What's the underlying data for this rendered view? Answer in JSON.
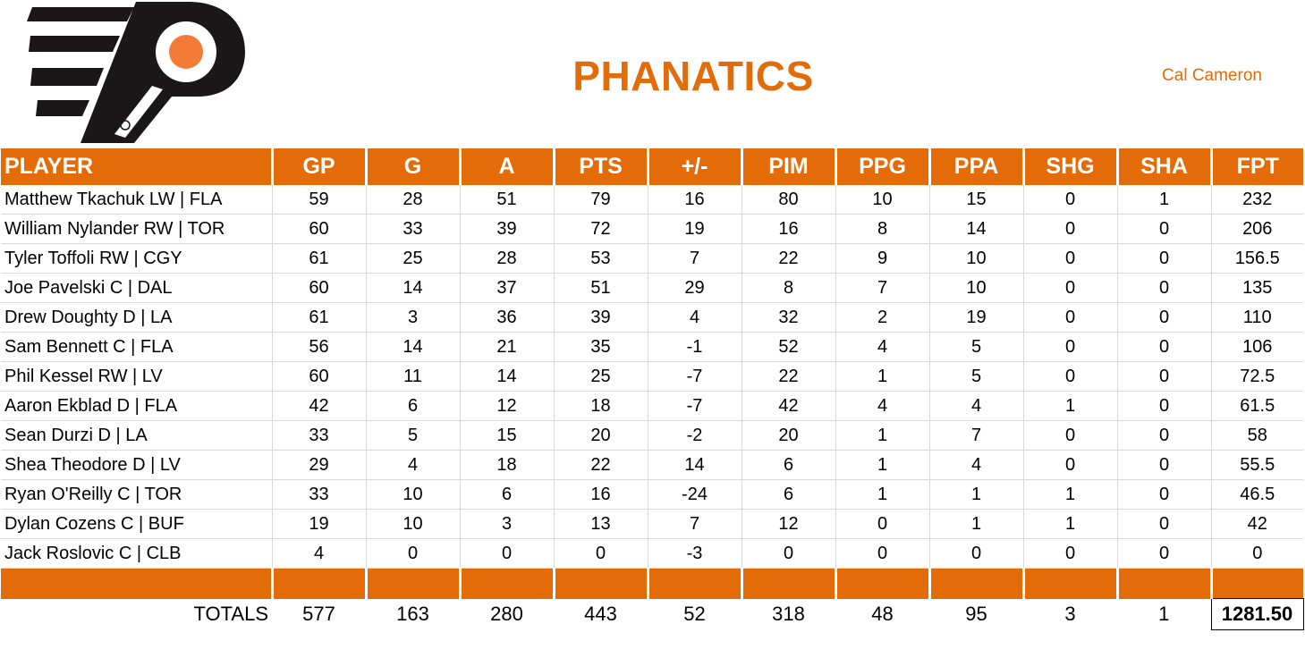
{
  "header": {
    "team_name": "PHANATICS",
    "owner": "Cal Cameron",
    "logo_icon": "flyers-logo-icon"
  },
  "colors": {
    "accent": "#e36c09",
    "title": "#e26b0a",
    "logo_black": "#1a1718",
    "logo_orange": "#f47a38"
  },
  "table": {
    "columns": [
      "PLAYER",
      "GP",
      "G",
      "A",
      "PTS",
      "+/-",
      "PIM",
      "PPG",
      "PPA",
      "SHG",
      "SHA",
      "FPT"
    ],
    "rows": [
      [
        "Matthew Tkachuk LW | FLA",
        "59",
        "28",
        "51",
        "79",
        "16",
        "80",
        "10",
        "15",
        "0",
        "1",
        "232"
      ],
      [
        "William Nylander RW | TOR",
        "60",
        "33",
        "39",
        "72",
        "19",
        "16",
        "8",
        "14",
        "0",
        "0",
        "206"
      ],
      [
        "Tyler Toffoli RW | CGY",
        "61",
        "25",
        "28",
        "53",
        "7",
        "22",
        "9",
        "10",
        "0",
        "0",
        "156.5"
      ],
      [
        "Joe Pavelski C | DAL",
        "60",
        "14",
        "37",
        "51",
        "29",
        "8",
        "7",
        "10",
        "0",
        "0",
        "135"
      ],
      [
        "Drew Doughty D | LA",
        "61",
        "3",
        "36",
        "39",
        "4",
        "32",
        "2",
        "19",
        "0",
        "0",
        "110"
      ],
      [
        "Sam Bennett C | FLA",
        "56",
        "14",
        "21",
        "35",
        "-1",
        "52",
        "4",
        "5",
        "0",
        "0",
        "106"
      ],
      [
        "Phil Kessel RW | LV",
        "60",
        "11",
        "14",
        "25",
        "-7",
        "22",
        "1",
        "5",
        "0",
        "0",
        "72.5"
      ],
      [
        "Aaron Ekblad D | FLA",
        "42",
        "6",
        "12",
        "18",
        "-7",
        "42",
        "4",
        "4",
        "1",
        "0",
        "61.5"
      ],
      [
        "Sean Durzi D | LA",
        "33",
        "5",
        "15",
        "20",
        "-2",
        "20",
        "1",
        "7",
        "0",
        "0",
        "58"
      ],
      [
        "Shea Theodore D | LV",
        "29",
        "4",
        "18",
        "22",
        "14",
        "6",
        "1",
        "4",
        "0",
        "0",
        "55.5"
      ],
      [
        "Ryan O'Reilly C | TOR",
        "33",
        "10",
        "6",
        "16",
        "-24",
        "6",
        "1",
        "1",
        "1",
        "0",
        "46.5"
      ],
      [
        "Dylan Cozens C | BUF",
        "19",
        "10",
        "3",
        "13",
        "7",
        "12",
        "0",
        "1",
        "1",
        "0",
        "42"
      ],
      [
        "Jack Roslovic C | CLB",
        "4",
        "0",
        "0",
        "0",
        "-3",
        "0",
        "0",
        "0",
        "0",
        "0",
        "0"
      ]
    ],
    "totals": [
      "TOTALS",
      "577",
      "163",
      "280",
      "443",
      "52",
      "318",
      "48",
      "95",
      "3",
      "1",
      "1281.50"
    ]
  }
}
